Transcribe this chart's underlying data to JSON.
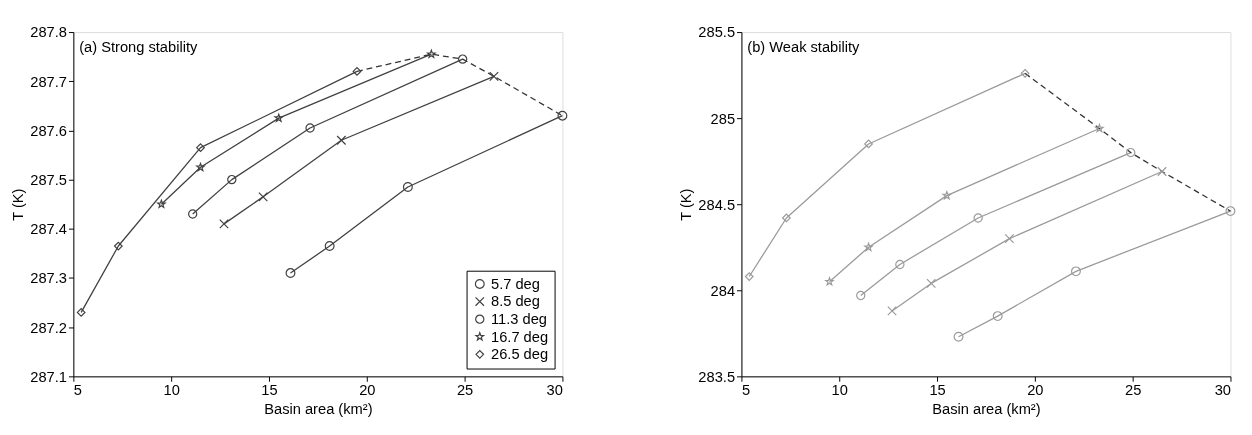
{
  "chart_data": [
    {
      "type": "line",
      "xlabel": "Basin area (km²)",
      "ylabel": "T (K)",
      "annotations": [
        "(a)  Strong stability"
      ],
      "xlim": [
        5,
        30
      ],
      "xticks": [
        5,
        10,
        15,
        20,
        25,
        30
      ],
      "ylim": [
        287.1,
        287.8
      ],
      "yticks": [
        287.1,
        287.2,
        287.3,
        287.4,
        287.5,
        287.6,
        287.7,
        287.8
      ],
      "grid": false,
      "legend": "bottom right",
      "line_style": "solid",
      "series": [
        {
          "name": "5.7 deg",
          "color": "#404040",
          "marker": "circle",
          "x": [
            16.1,
            18.1,
            22.1,
            30
          ],
          "values": [
            287.31,
            287.365,
            287.485,
            287.63
          ]
        },
        {
          "name": "8.5 deg",
          "color": "#404040",
          "marker": "cross",
          "x": [
            12.7,
            14.7,
            18.7,
            26.5
          ],
          "values": [
            287.41,
            287.465,
            287.58,
            287.71
          ]
        },
        {
          "name": "11.3 deg",
          "color": "#404040",
          "marker": "circle",
          "x": [
            11.1,
            13.1,
            17.1,
            24.9
          ],
          "values": [
            287.43,
            287.5,
            287.605,
            287.745
          ]
        },
        {
          "name": "16.7 deg",
          "color": "#404040",
          "marker": "star",
          "x": [
            9.5,
            11.5,
            15.5,
            23.3
          ],
          "values": [
            287.45,
            287.525,
            287.625,
            287.755
          ]
        },
        {
          "name": "26.5 deg",
          "color": "#404040",
          "marker": "diamond",
          "x": [
            5.4,
            7.3,
            11.5,
            19.5
          ],
          "values": [
            287.23,
            287.365,
            287.565,
            287.72
          ]
        },
        {
          "type": "line",
          "color": "#333333",
          "marker": "none",
          "line_style": "dashed",
          "x": [
            19.5,
            23.3,
            24.9,
            26.5,
            30
          ],
          "values": [
            287.72,
            287.755,
            287.745,
            287.71,
            287.63
          ]
        }
      ]
    },
    {
      "type": "line",
      "xlabel": "Basin area (km²)",
      "ylabel": "T (K)",
      "annotations": [
        "(b)  Weak stability"
      ],
      "xlim": [
        5,
        30
      ],
      "xticks": [
        5,
        10,
        15,
        20,
        25,
        30
      ],
      "ylim": [
        283.5,
        285.5
      ],
      "yticks": [
        283.5,
        284,
        284.5,
        285,
        285.5
      ],
      "grid": false,
      "line_style": "solid",
      "series": [
        {
          "color": "#9a9a9a",
          "marker": "circle",
          "x": [
            16.1,
            18.1,
            22.1,
            30
          ],
          "values": [
            283.73,
            283.85,
            284.11,
            284.46
          ]
        },
        {
          "color": "#9a9a9a",
          "marker": "cross",
          "x": [
            12.7,
            14.7,
            18.7,
            26.5
          ],
          "values": [
            283.88,
            284.04,
            284.3,
            284.69
          ]
        },
        {
          "color": "#9a9a9a",
          "marker": "circle",
          "x": [
            11.1,
            13.1,
            17.1,
            24.9
          ],
          "values": [
            283.97,
            284.15,
            284.42,
            284.8
          ]
        },
        {
          "color": "#9a9a9a",
          "marker": "star",
          "x": [
            9.5,
            11.5,
            15.5,
            23.3
          ],
          "values": [
            284.05,
            284.25,
            284.55,
            284.94
          ]
        },
        {
          "color": "#9a9a9a",
          "marker": "diamond",
          "x": [
            5.4,
            7.3,
            11.5,
            19.5
          ],
          "values": [
            284.08,
            284.42,
            284.85,
            285.26
          ]
        },
        {
          "type": "line",
          "color": "#333333",
          "marker": "none",
          "line_style": "dashed",
          "x": [
            19.5,
            23.3,
            24.9,
            26.5,
            30
          ],
          "values": [
            285.26,
            284.94,
            284.8,
            284.69,
            284.46
          ]
        }
      ]
    }
  ]
}
